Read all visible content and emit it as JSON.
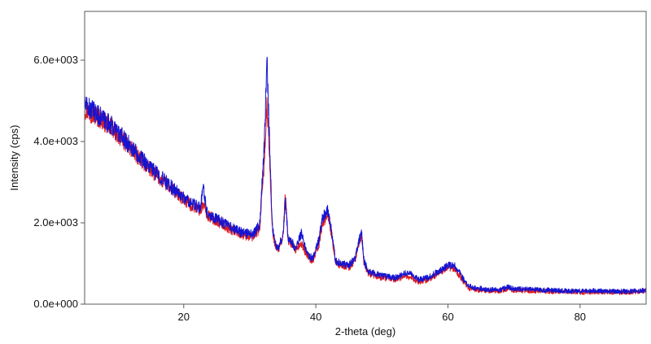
{
  "chart_data": {
    "type": "line",
    "title": "",
    "xlabel": "2-theta (deg)",
    "ylabel": "Intensity (cps)",
    "xlim": [
      5,
      90
    ],
    "ylim": [
      0,
      7200
    ],
    "x_ticks": [
      20,
      40,
      60,
      80
    ],
    "x_tick_labels": [
      "20",
      "40",
      "60",
      "80"
    ],
    "y_ticks": [
      0,
      2000,
      4000,
      6000
    ],
    "y_tick_labels": [
      "0.0e+000",
      "2.0e+003",
      "4.0e+003",
      "6.0e+003"
    ],
    "grid": false,
    "legend": "none",
    "series": [
      {
        "color": "#e01e1e",
        "x": [
          5,
          7,
          9,
          11,
          13,
          15,
          17,
          19,
          21,
          22.5,
          23,
          23.5,
          25,
          27,
          29,
          30.5,
          31.5,
          32.2,
          32.6,
          33.0,
          33.4,
          33.8,
          34.3,
          35.0,
          35.4,
          35.8,
          36.3,
          37.0,
          37.8,
          38.5,
          39.5,
          40.5,
          41.0,
          41.8,
          42.2,
          43.0,
          44.0,
          45.0,
          46.0,
          46.5,
          46.9,
          47.3,
          48.0,
          50,
          52,
          53.5,
          54.4,
          55.5,
          57,
          58.5,
          60,
          61,
          62,
          63,
          64,
          66,
          68,
          69,
          70,
          72,
          74,
          76,
          78,
          80,
          82,
          84,
          86,
          88,
          90
        ],
        "y": [
          4800,
          4600,
          4350,
          4000,
          3650,
          3300,
          3000,
          2700,
          2450,
          2300,
          2450,
          2200,
          2050,
          1850,
          1700,
          1650,
          1850,
          3500,
          4900,
          3600,
          1900,
          1450,
          1350,
          1600,
          2700,
          1550,
          1500,
          1300,
          1500,
          1250,
          1050,
          1500,
          2000,
          2200,
          1900,
          1000,
          950,
          900,
          1100,
          1500,
          1700,
          1000,
          750,
          650,
          600,
          700,
          650,
          550,
          600,
          750,
          900,
          850,
          650,
          400,
          350,
          330,
          320,
          380,
          340,
          330,
          320,
          310,
          300,
          290,
          300,
          300,
          290,
          300,
          320
        ]
      },
      {
        "color": "#1414d2",
        "x": [
          5,
          7,
          9,
          11,
          13,
          15,
          17,
          19,
          21,
          22.5,
          23,
          23.5,
          25,
          27,
          29,
          30.5,
          31.5,
          32.2,
          32.6,
          33.0,
          33.4,
          33.8,
          34.3,
          35.0,
          35.4,
          35.8,
          36.3,
          37.0,
          37.8,
          38.5,
          39.5,
          40.5,
          41.0,
          41.8,
          42.2,
          43.0,
          44.0,
          45.0,
          46.0,
          46.5,
          46.9,
          47.3,
          48.0,
          50,
          52,
          53.5,
          54.4,
          55.5,
          57,
          58.5,
          60,
          61,
          62,
          63,
          64,
          66,
          68,
          69,
          70,
          72,
          74,
          76,
          78,
          80,
          82,
          84,
          86,
          88,
          90
        ],
        "y": [
          4900,
          4650,
          4400,
          4050,
          3700,
          3350,
          3050,
          2750,
          2500,
          2350,
          2900,
          2250,
          2100,
          1900,
          1750,
          1700,
          1950,
          3900,
          6000,
          4000,
          1950,
          1500,
          1400,
          1650,
          2600,
          1600,
          1550,
          1350,
          1750,
          1300,
          1100,
          1600,
          2100,
          2350,
          2000,
          1050,
          1000,
          950,
          1150,
          1550,
          1800,
          1050,
          800,
          700,
          650,
          750,
          750,
          600,
          650,
          800,
          950,
          950,
          700,
          450,
          400,
          360,
          350,
          420,
          380,
          370,
          350,
          340,
          330,
          320,
          330,
          320,
          310,
          320,
          340
        ]
      }
    ]
  }
}
